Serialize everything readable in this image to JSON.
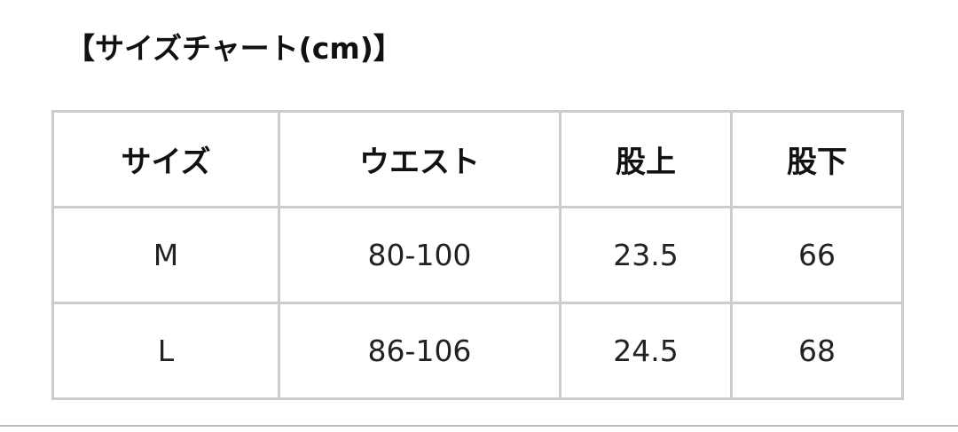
{
  "title": "【サイズチャート(cm)】",
  "table": {
    "headers": [
      "サイズ",
      "ウエスト",
      "股上",
      "股下"
    ],
    "rows": [
      [
        "M",
        "80-100",
        "23.5",
        "66"
      ],
      [
        "L",
        "86-106",
        "24.5",
        "68"
      ]
    ]
  }
}
